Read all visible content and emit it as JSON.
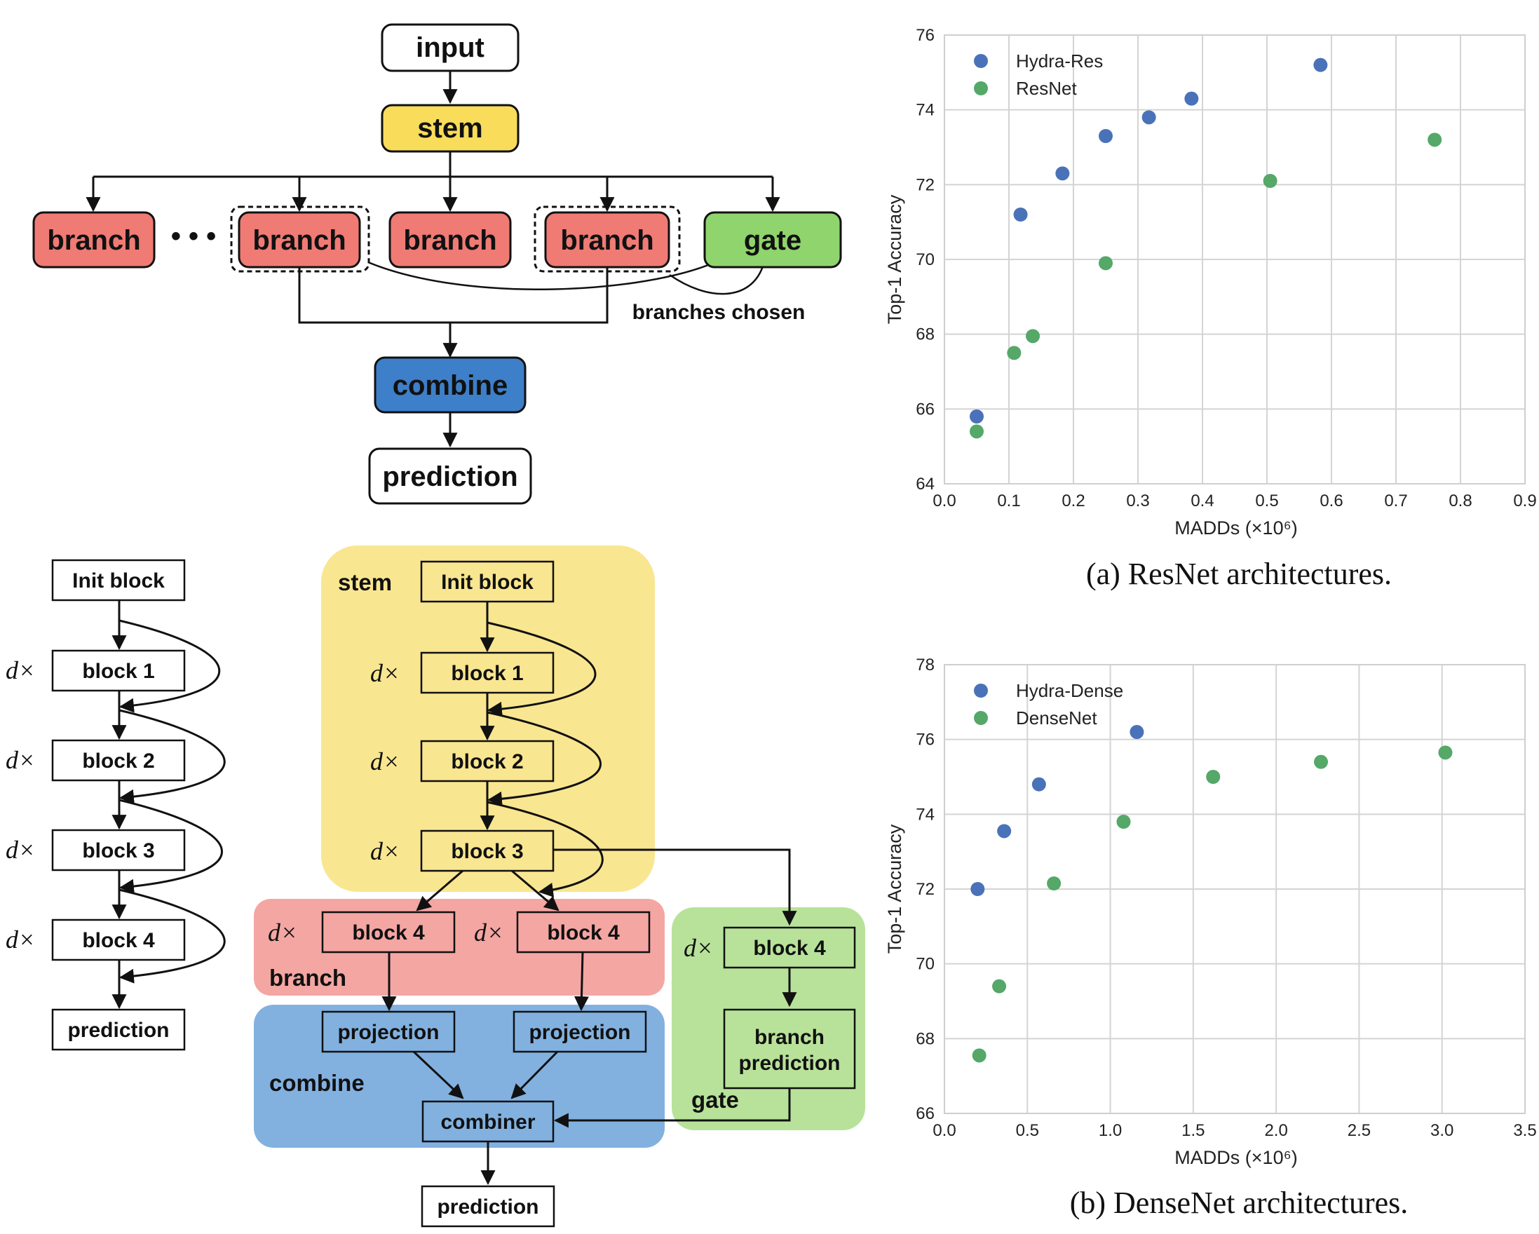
{
  "colors": {
    "stem": "#f8dc5a",
    "branch": "#ef7b74",
    "gate": "#8fd46c",
    "combine": "#3d7fc9",
    "stem_region": "#f9e690",
    "branch_region": "#f4a6a3",
    "gate_region": "#b8e29a",
    "combine_region": "#82b1e0",
    "hydra_series": "#4a72b8",
    "baseline_series": "#55a868"
  },
  "diagram_top": {
    "input": "input",
    "stem": "stem",
    "branches": [
      "branch",
      "branch",
      "branch",
      "branch"
    ],
    "ellipsis": "• • •",
    "gate": "gate",
    "gate_note": "branches chosen",
    "combine": "combine",
    "prediction": "prediction"
  },
  "diagram_resnet": {
    "blocks": [
      "Init block",
      "block 1",
      "block 2",
      "block 3",
      "block 4",
      "prediction"
    ],
    "multiplier": "d×"
  },
  "diagram_hydra": {
    "multiplier": "d×",
    "stem_label": "stem",
    "stem_blocks": [
      "Init block",
      "block 1",
      "block 2",
      "block 3"
    ],
    "branch_label": "branch",
    "branch_blocks": [
      "block 4",
      "block 4"
    ],
    "combine_label": "combine",
    "projections": [
      "projection",
      "projection"
    ],
    "combiner": "combiner",
    "gate_label": "gate",
    "gate_block": "block 4",
    "gate_prediction": [
      "branch",
      "prediction"
    ],
    "prediction": "prediction"
  },
  "chart_data": [
    {
      "type": "scatter",
      "caption": "(a) ResNet architectures.",
      "xlabel": "MADDs (×10⁶)",
      "ylabel": "Top-1 Accuracy",
      "xlim": [
        0.0,
        0.9
      ],
      "ylim": [
        64,
        76
      ],
      "xticks": [
        "0.0",
        "0.1",
        "0.2",
        "0.3",
        "0.4",
        "0.5",
        "0.6",
        "0.7",
        "0.8",
        "0.9"
      ],
      "yticks": [
        "64",
        "66",
        "68",
        "70",
        "72",
        "74",
        "76"
      ],
      "grid": true,
      "legend_position": "top-left",
      "series": [
        {
          "name": "Hydra-Res",
          "color": "#4a72b8",
          "points": [
            [
              0.05,
              65.8
            ],
            [
              0.118,
              71.2
            ],
            [
              0.183,
              72.3
            ],
            [
              0.25,
              73.3
            ],
            [
              0.317,
              73.8
            ],
            [
              0.383,
              74.3
            ],
            [
              0.583,
              75.2
            ]
          ]
        },
        {
          "name": "ResNet",
          "color": "#55a868",
          "points": [
            [
              0.05,
              65.4
            ],
            [
              0.108,
              67.5
            ],
            [
              0.137,
              67.95
            ],
            [
              0.25,
              69.9
            ],
            [
              0.505,
              72.1
            ],
            [
              0.76,
              73.2
            ]
          ]
        }
      ]
    },
    {
      "type": "scatter",
      "caption": "(b) DenseNet architectures.",
      "xlabel": "MADDs (×10⁶)",
      "ylabel": "Top-1 Accuracy",
      "xlim": [
        0.0,
        3.5
      ],
      "ylim": [
        66,
        78
      ],
      "xticks": [
        "0.0",
        "0.5",
        "1.0",
        "1.5",
        "2.0",
        "2.5",
        "3.0",
        "3.5"
      ],
      "yticks": [
        "66",
        "68",
        "70",
        "72",
        "74",
        "76",
        "78"
      ],
      "grid": true,
      "legend_position": "top-left",
      "series": [
        {
          "name": "Hydra-Dense",
          "color": "#4a72b8",
          "points": [
            [
              0.2,
              72.0
            ],
            [
              0.36,
              73.55
            ],
            [
              0.57,
              74.8
            ],
            [
              1.16,
              76.2
            ]
          ]
        },
        {
          "name": "DenseNet",
          "color": "#55a868",
          "points": [
            [
              0.21,
              67.55
            ],
            [
              0.33,
              69.4
            ],
            [
              0.66,
              72.15
            ],
            [
              1.08,
              73.8
            ],
            [
              1.62,
              75.0
            ],
            [
              2.27,
              75.4
            ],
            [
              3.02,
              75.65
            ]
          ]
        }
      ]
    }
  ]
}
